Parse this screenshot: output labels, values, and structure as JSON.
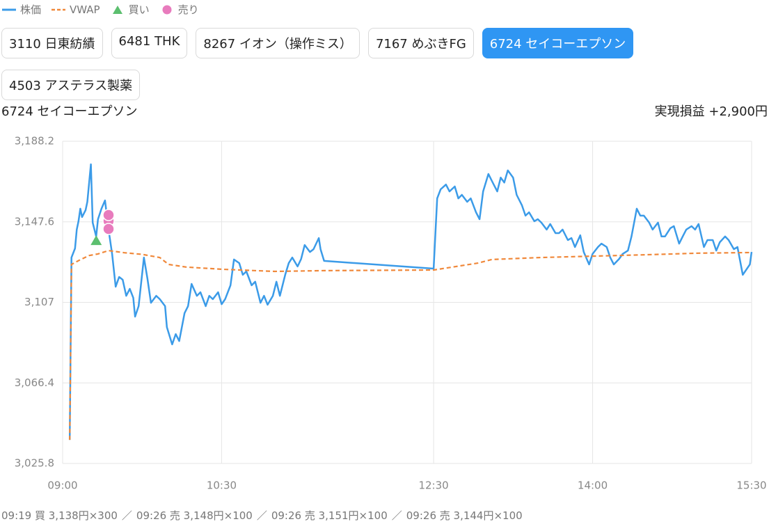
{
  "tabs": [
    "3110 日東紡績",
    "6481 THK",
    "8267 イオン（操作ミス）",
    "7167 めぶきFG",
    "6724 セイコーエプソン",
    "4503 アステラス製薬"
  ],
  "active_tab": 4,
  "realized_pnl_label": "実現損益",
  "realized_pnl": "+2,900円",
  "trade_log": [
    "09:19 買 3,138円×300",
    "09:26 売 3,148円×100",
    "09:26 売 3,151円×100",
    "09:26 売 3,144円×100"
  ],
  "trade_separator": "／",
  "chart_data": {
    "type": "line",
    "title": "6724 セイコーエプソン",
    "xlim": [
      "09:00",
      "15:30"
    ],
    "xticks": [
      "09:00",
      "10:30",
      "12:30",
      "14:00",
      "15:30"
    ],
    "ylim": [
      3025.8,
      3188.2
    ],
    "yticks": [
      {
        "value": 3025.8,
        "label": "3,025.8"
      },
      {
        "value": 3066.4,
        "label": "3,066.4"
      },
      {
        "value": 3107,
        "label": "3,107"
      },
      {
        "value": 3147.6,
        "label": "3,147.6"
      },
      {
        "value": 3188.2,
        "label": "3,188.2"
      }
    ],
    "grid": true,
    "series": [
      {
        "name": "株価",
        "color": "#3b9be8",
        "style": "solid",
        "x": [
          "09:04",
          "09:05",
          "09:07",
          "09:08",
          "09:09",
          "09:10",
          "09:11",
          "09:13",
          "09:14",
          "09:16",
          "09:17",
          "09:19",
          "09:20",
          "09:22",
          "09:24",
          "09:26",
          "09:28",
          "09:30",
          "09:32",
          "09:34",
          "09:36",
          "09:38",
          "09:40",
          "09:41",
          "09:43",
          "09:46",
          "09:48",
          "09:50",
          "09:53",
          "09:55",
          "09:58",
          "09:59",
          "10:02",
          "10:04",
          "10:06",
          "10:09",
          "10:11",
          "10:13",
          "10:16",
          "10:18",
          "10:21",
          "10:23",
          "10:25",
          "10:28",
          "10:30",
          "10:32",
          "10:35",
          "10:37",
          "10:40",
          "10:42",
          "10:44",
          "10:47",
          "10:49",
          "10:52",
          "10:54",
          "10:56",
          "10:59",
          "11:01",
          "11:03",
          "11:06",
          "11:08",
          "11:10",
          "11:13",
          "11:15",
          "11:17",
          "11:20",
          "11:22",
          "11:25",
          "11:26",
          "11:28",
          "12:30",
          "12:32",
          "12:34",
          "12:37",
          "12:39",
          "12:42",
          "12:44",
          "12:46",
          "12:49",
          "12:51",
          "12:54",
          "12:56",
          "12:58",
          "13:01",
          "13:03",
          "13:06",
          "13:08",
          "13:10",
          "13:12",
          "13:15",
          "13:17",
          "13:20",
          "13:22",
          "13:24",
          "13:27",
          "13:29",
          "13:31",
          "13:34",
          "13:36",
          "13:39",
          "13:41",
          "13:43",
          "13:46",
          "13:48",
          "13:50",
          "13:53",
          "13:55",
          "13:58",
          "14:00",
          "14:03",
          "14:05",
          "14:08",
          "14:10",
          "14:12",
          "14:15",
          "14:17",
          "14:20",
          "14:22",
          "14:25",
          "14:27",
          "14:29",
          "14:32",
          "14:34",
          "14:37",
          "14:39",
          "14:41",
          "14:44",
          "14:46",
          "14:49",
          "14:51",
          "14:53",
          "14:56",
          "14:58",
          "15:00",
          "15:03",
          "15:05",
          "15:08",
          "15:10",
          "15:12",
          "15:15",
          "15:17",
          "15:20",
          "15:22",
          "15:25",
          "15:29",
          "15:30"
        ],
        "values": [
          3037.7,
          3129.6,
          3134.2,
          3143.7,
          3147.9,
          3154.2,
          3150,
          3153.5,
          3157.7,
          3176.6,
          3147.2,
          3140.2,
          3148.9,
          3154.2,
          3158.4,
          3143.7,
          3131.4,
          3114.9,
          3119.8,
          3118.4,
          3110.3,
          3113.8,
          3109.3,
          3099.8,
          3105.1,
          3129.6,
          3119.1,
          3106.8,
          3110.3,
          3108.6,
          3105.1,
          3094.5,
          3085.8,
          3091,
          3087.5,
          3101.6,
          3105.1,
          3116.3,
          3110.3,
          3112.1,
          3105.1,
          3110.3,
          3108.6,
          3112.1,
          3106.1,
          3108.6,
          3115.6,
          3128.6,
          3126.8,
          3120.9,
          3122.6,
          3115.6,
          3117.4,
          3106.8,
          3110.3,
          3105.8,
          3110.3,
          3117.4,
          3110.3,
          3120.9,
          3126.8,
          3129.6,
          3125.1,
          3128.9,
          3135.9,
          3132.4,
          3133.8,
          3139.4,
          3133.8,
          3127.9,
          3124,
          3159.4,
          3164,
          3166.4,
          3162.9,
          3165.4,
          3159.4,
          3161.2,
          3157.7,
          3159.4,
          3152.4,
          3148.9,
          3162.9,
          3171.7,
          3168.2,
          3162.9,
          3169.9,
          3167.4,
          3173.5,
          3169.9,
          3161.2,
          3155.9,
          3150.7,
          3152.4,
          3147.9,
          3148.9,
          3147.2,
          3143.7,
          3146.5,
          3141.9,
          3141.9,
          3143.7,
          3138.4,
          3139.4,
          3134.9,
          3140.8,
          3132.4,
          3126.1,
          3131.4,
          3134.9,
          3136.6,
          3134.9,
          3129.6,
          3126.1,
          3128.9,
          3131.4,
          3133.1,
          3140.2,
          3154.2,
          3150.7,
          3150.7,
          3147.2,
          3143.7,
          3147.2,
          3140.2,
          3140.2,
          3144.4,
          3145.4,
          3136.6,
          3140.2,
          3143.7,
          3145.4,
          3143.7,
          3146.5,
          3134.9,
          3138.4,
          3138.4,
          3133.1,
          3137.3,
          3140.2,
          3138.4,
          3133.8,
          3134.9,
          3120.9,
          3126.1,
          3132.4
        ]
      },
      {
        "name": "VWAP",
        "color": "#f0883a",
        "style": "dashed",
        "x": [
          "09:04",
          "09:05",
          "09:10",
          "09:15",
          "09:20",
          "09:26",
          "09:35",
          "09:45",
          "09:55",
          "10:00",
          "10:10",
          "10:30",
          "11:00",
          "11:28",
          "12:30",
          "12:55",
          "13:03",
          "13:30",
          "14:00",
          "14:30",
          "15:00",
          "15:30"
        ],
        "values": [
          3037.7,
          3126.1,
          3128.5,
          3130.6,
          3131.4,
          3133.1,
          3132,
          3131.2,
          3129.6,
          3126.1,
          3124.8,
          3123.7,
          3122.6,
          3123,
          3123.3,
          3126.8,
          3128.6,
          3129.6,
          3130.3,
          3131,
          3131.8,
          3132.1
        ]
      },
      {
        "name": "買い",
        "color": "#5cbf6f",
        "style": "triangle",
        "x": [
          "09:19"
        ],
        "values": [
          3138
        ]
      },
      {
        "name": "売り",
        "color": "#e87bbd",
        "style": "circle",
        "x": [
          "09:26",
          "09:26",
          "09:26"
        ],
        "values": [
          3148,
          3151,
          3144
        ]
      }
    ]
  }
}
